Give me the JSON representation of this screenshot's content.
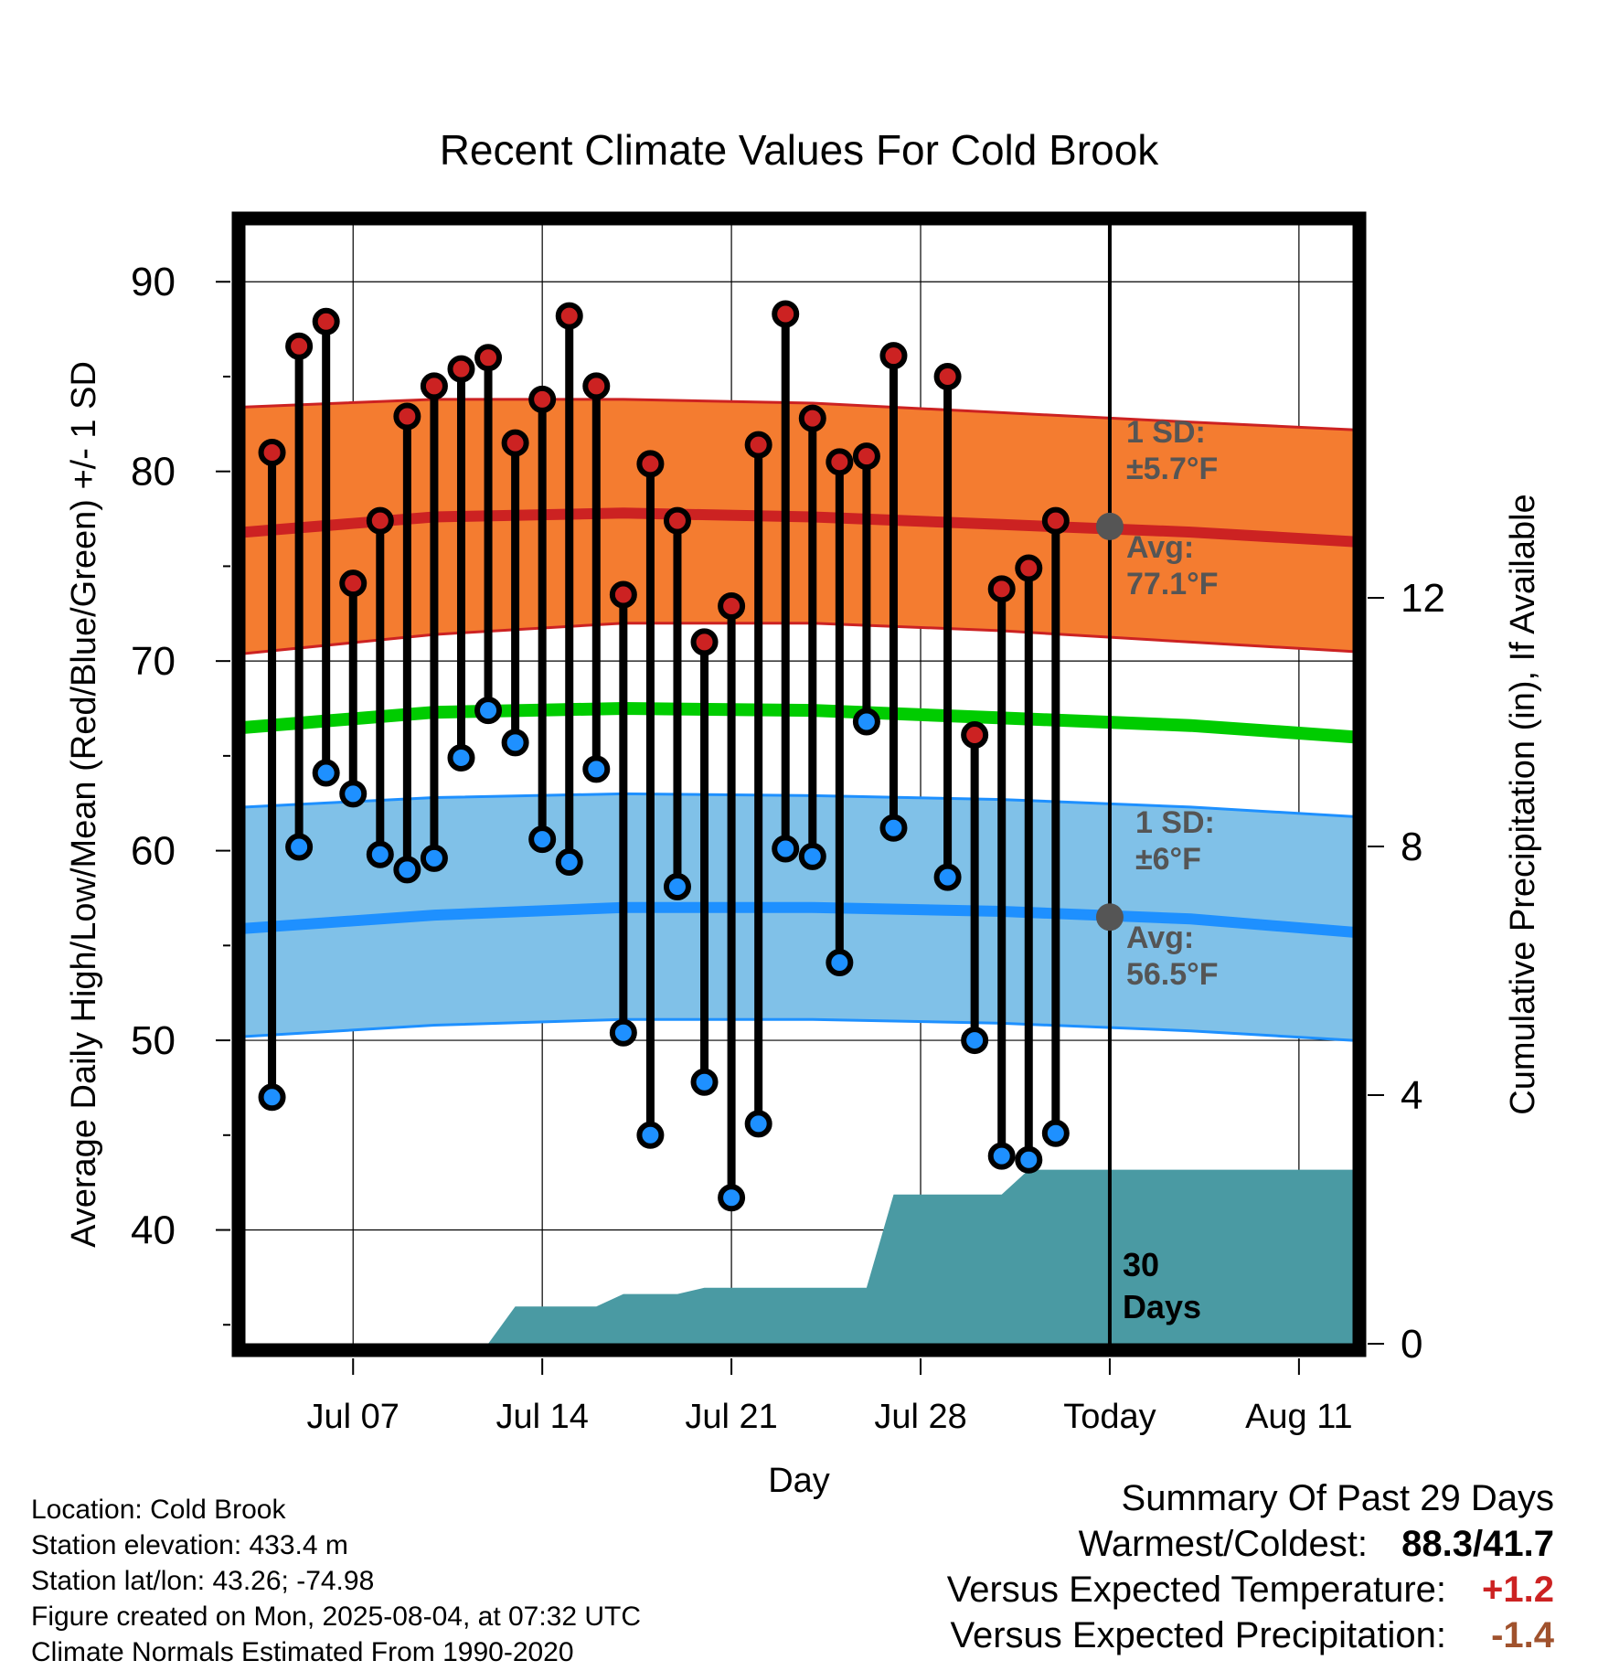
{
  "chart_data": {
    "type": "line",
    "title": "Recent Climate Values For Cold Brook",
    "xlabel": "Day",
    "ylabel": "Average Daily High/Low/Mean (Red/Blue/Green) +/- 1 SD",
    "y2label": "Cumulative Precipitation (in), If Available",
    "ylim": [
      34,
      93
    ],
    "y2lim": [
      0,
      18
    ],
    "yticks": [
      "40",
      "50",
      "60",
      "70",
      "80",
      "90"
    ],
    "y2ticks": [
      "0",
      "4",
      "8",
      "12"
    ],
    "xticks": [
      {
        "day": "2025-07-07",
        "label": "Jul 07"
      },
      {
        "day": "2025-07-14",
        "label": "Jul 14"
      },
      {
        "day": "2025-07-21",
        "label": "Jul 21"
      },
      {
        "day": "2025-07-28",
        "label": "Jul 28"
      },
      {
        "day": "2025-08-04",
        "label": "Today"
      },
      {
        "day": "2025-08-11",
        "label": "Aug 11"
      }
    ],
    "xrange": [
      "2025-07-03",
      "2025-08-13"
    ],
    "today": "2025-08-04",
    "grid": true,
    "colors": {
      "high": "#cc2222",
      "low": "#1e90ff",
      "mean": "#00cc00",
      "high_band": "#f47c30",
      "low_band": "#80c1e8",
      "precip": "#4a9aa3",
      "annotation": "#555555"
    },
    "days": [
      "2025-07-04",
      "2025-07-05",
      "2025-07-06",
      "2025-07-07",
      "2025-07-08",
      "2025-07-09",
      "2025-07-10",
      "2025-07-11",
      "2025-07-12",
      "2025-07-13",
      "2025-07-14",
      "2025-07-15",
      "2025-07-16",
      "2025-07-17",
      "2025-07-18",
      "2025-07-19",
      "2025-07-20",
      "2025-07-21",
      "2025-07-22",
      "2025-07-23",
      "2025-07-24",
      "2025-07-25",
      "2025-07-26",
      "2025-07-27",
      "2025-07-28",
      "2025-07-29",
      "2025-07-30",
      "2025-07-31",
      "2025-08-01",
      "2025-08-02",
      "2025-08-03"
    ],
    "series": [
      {
        "name": "High",
        "values": [
          81.0,
          86.6,
          87.9,
          74.1,
          77.4,
          82.9,
          84.5,
          85.4,
          86.0,
          81.5,
          83.8,
          88.2,
          84.5,
          73.5,
          80.4,
          77.4,
          71.0,
          72.9,
          81.4,
          88.3,
          82.8,
          80.5,
          80.8,
          86.1,
          null,
          85.0,
          66.1,
          73.8,
          74.9,
          77.4,
          null
        ]
      },
      {
        "name": "Low",
        "values": [
          47.0,
          60.2,
          64.1,
          63.0,
          59.8,
          59.0,
          59.6,
          64.9,
          67.4,
          65.7,
          60.6,
          59.4,
          64.3,
          50.4,
          45.0,
          58.1,
          47.8,
          41.7,
          45.6,
          60.1,
          59.7,
          54.1,
          66.8,
          61.2,
          null,
          58.6,
          50.0,
          43.9,
          43.7,
          45.1,
          null
        ]
      }
    ],
    "normals": {
      "days": [
        "2025-07-03",
        "2025-07-10",
        "2025-07-17",
        "2025-07-24",
        "2025-07-31",
        "2025-08-07",
        "2025-08-13"
      ],
      "high_avg": [
        76.8,
        77.6,
        77.8,
        77.6,
        77.2,
        76.8,
        76.3
      ],
      "high_plus_sd": [
        83.4,
        83.8,
        83.8,
        83.6,
        83.1,
        82.6,
        82.2
      ],
      "high_minus_sd": [
        70.4,
        71.4,
        72.0,
        72.0,
        71.6,
        71.0,
        70.5
      ],
      "low_avg": [
        55.9,
        56.6,
        57.0,
        57.0,
        56.8,
        56.4,
        55.7
      ],
      "low_plus_sd": [
        62.3,
        62.8,
        63.0,
        62.9,
        62.7,
        62.3,
        61.8
      ],
      "low_minus_sd": [
        50.2,
        50.8,
        51.1,
        51.1,
        50.9,
        50.5,
        50.0
      ],
      "mean_avg": [
        66.5,
        67.3,
        67.5,
        67.4,
        67.0,
        66.6,
        66.0
      ]
    },
    "precip_cumulative": {
      "days": [
        "2025-07-12",
        "2025-07-13",
        "2025-07-15",
        "2025-07-16",
        "2025-07-17",
        "2025-07-19",
        "2025-07-20",
        "2025-07-25",
        "2025-07-26",
        "2025-07-27",
        "2025-07-31",
        "2025-08-01",
        "2025-08-13"
      ],
      "values": [
        0.0,
        0.6,
        0.6,
        0.6,
        0.8,
        0.8,
        0.9,
        0.9,
        0.9,
        2.4,
        2.4,
        2.8,
        2.8
      ]
    },
    "annotations": {
      "high_sd_label": "1 SD:",
      "high_sd_value": "±5.7°F",
      "high_avg_label": "Avg:",
      "high_avg_value": "77.1°F",
      "low_sd_label": "1 SD:",
      "low_sd_value": "±6°F",
      "low_avg_label": "Avg:",
      "low_avg_value": "56.5°F",
      "high_today_avg": 77.1,
      "low_today_avg": 56.5,
      "period_line1": "30",
      "period_line2": "Days"
    }
  },
  "info": {
    "location": "Location: Cold Brook",
    "elevation": "Station elevation: 433.4 m",
    "latlon": "Station lat/lon: 43.26; -74.98",
    "created": "Figure created on Mon, 2025-08-04, at 07:32 UTC",
    "normals": "Climate Normals Estimated From 1990-2020"
  },
  "summary": {
    "title": "Summary Of Past 29 Days",
    "extremes_label": "Warmest/Coldest:",
    "warmest": "88.3",
    "slash": "/",
    "coldest": "41.7",
    "temp_label": "Versus Expected Temperature:",
    "temp_value": "+1.2",
    "temp_color": "#cc2222",
    "precip_label": "Versus Expected Precipitation:",
    "precip_value": "-1.4",
    "precip_color": "#a0522d"
  }
}
